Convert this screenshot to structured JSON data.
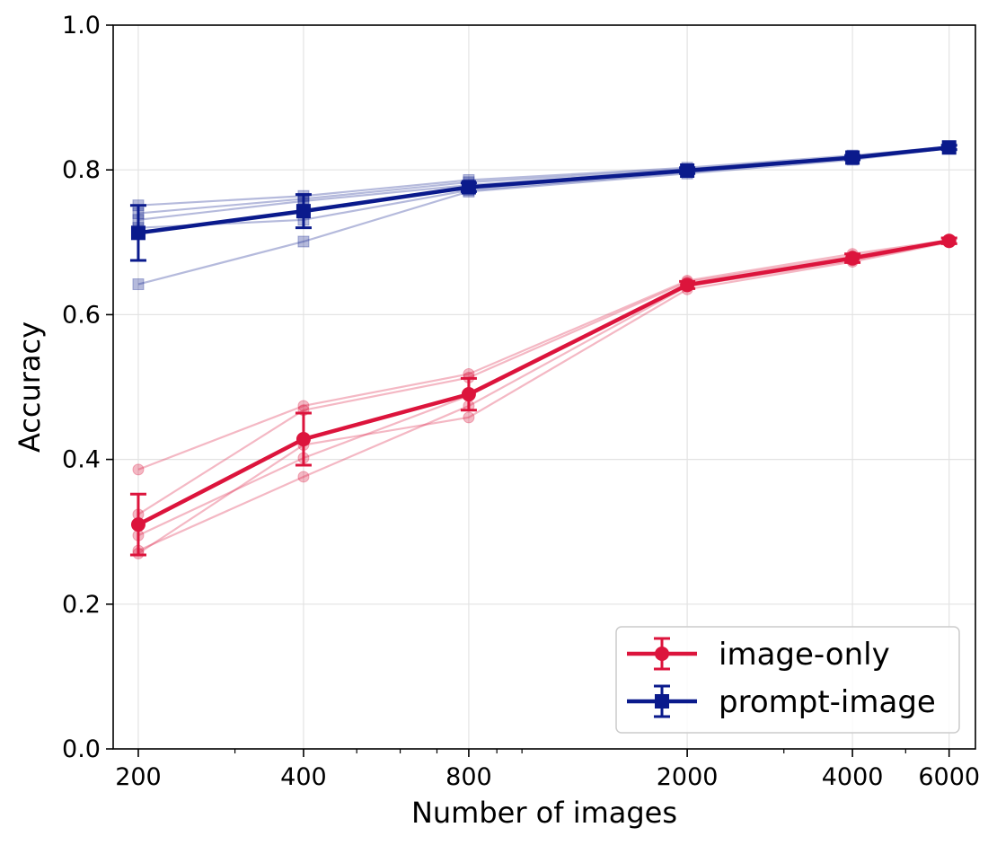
{
  "chart_data": {
    "type": "line",
    "xlabel": "Number of images",
    "ylabel": "Accuracy",
    "x_scale": "log",
    "xlim": [
      180,
      6700
    ],
    "ylim": [
      0.0,
      1.0
    ],
    "x": [
      200,
      400,
      800,
      2000,
      4000,
      6000
    ],
    "x_tick_labels": [
      "200",
      "400",
      "800",
      "2000",
      "4000",
      "6000"
    ],
    "y_ticks": [
      0.0,
      0.2,
      0.4,
      0.6,
      0.8,
      1.0
    ],
    "y_tick_labels": [
      "0.0",
      "0.2",
      "0.4",
      "0.6",
      "0.8",
      "1.0"
    ],
    "grid": true,
    "legend_position": "bottom-right",
    "series": [
      {
        "name": "image-only",
        "color": "#dc143c",
        "marker": "circle",
        "mean": [
          0.31,
          0.428,
          0.49,
          0.641,
          0.678,
          0.702
        ],
        "error": [
          0.042,
          0.036,
          0.022,
          0.005,
          0.006,
          0.004
        ],
        "runs": [
          [
            0.386,
            0.474,
            0.518,
            0.647,
            0.684,
            0.703
          ],
          [
            0.324,
            0.468,
            0.513,
            0.645,
            0.681,
            0.702
          ],
          [
            0.295,
            0.402,
            0.488,
            0.642,
            0.678,
            0.702
          ],
          [
            0.274,
            0.376,
            0.474,
            0.639,
            0.675,
            0.701
          ],
          [
            0.27,
            0.42,
            0.458,
            0.635,
            0.673,
            0.7
          ]
        ]
      },
      {
        "name": "prompt-image",
        "color": "#0a1a8c",
        "marker": "square",
        "mean": [
          0.713,
          0.743,
          0.776,
          0.799,
          0.817,
          0.831
        ],
        "error": [
          0.038,
          0.023,
          0.006,
          0.004,
          0.003,
          0.003
        ],
        "runs": [
          [
            0.751,
            0.764,
            0.786,
            0.803,
            0.82,
            0.832
          ],
          [
            0.74,
            0.76,
            0.783,
            0.801,
            0.818,
            0.831
          ],
          [
            0.731,
            0.757,
            0.779,
            0.799,
            0.817,
            0.831
          ],
          [
            0.72,
            0.731,
            0.772,
            0.797,
            0.816,
            0.83
          ],
          [
            0.642,
            0.701,
            0.77,
            0.795,
            0.814,
            0.83
          ]
        ]
      }
    ]
  }
}
